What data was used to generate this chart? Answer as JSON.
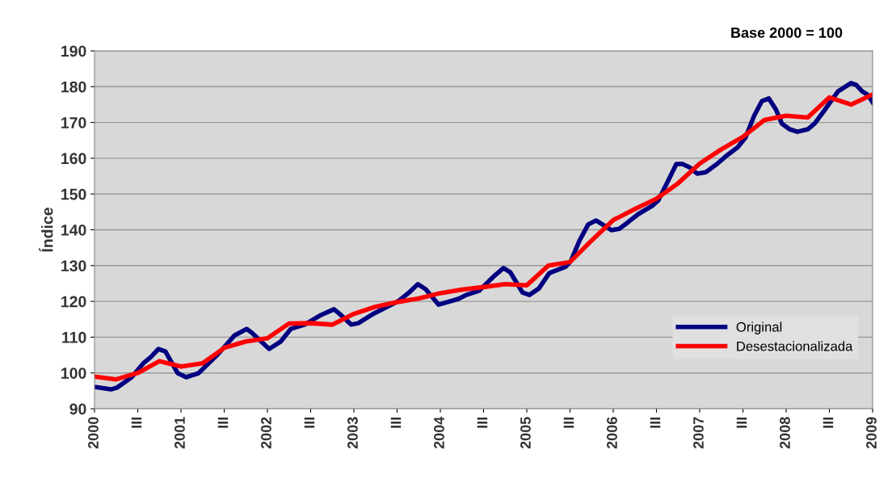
{
  "chart_data": {
    "type": "line",
    "ylabel": "Índice",
    "annotations": [
      "Base 2000 = 100"
    ],
    "xlim": [
      2000,
      2009
    ],
    "ylim": [
      90,
      190
    ],
    "yticks": [
      90,
      100,
      110,
      120,
      130,
      140,
      150,
      160,
      170,
      180,
      190
    ],
    "xticks": [
      2000,
      {
        "value": 2000.5,
        "label": "III"
      },
      2001,
      {
        "value": 2001.5,
        "label": "III"
      },
      2002,
      {
        "value": 2002.5,
        "label": "III"
      },
      2003,
      {
        "value": 2003.5,
        "label": "III"
      },
      2004,
      {
        "value": 2004.5,
        "label": "III"
      },
      2005,
      {
        "value": 2005.5,
        "label": "III"
      },
      2006,
      {
        "value": 2006.5,
        "label": "III"
      },
      2007,
      {
        "value": 2007.5,
        "label": "III"
      },
      2008,
      {
        "value": 2008.5,
        "label": "III"
      },
      2009
    ],
    "grid": "y",
    "legend": "bottom right",
    "marker": "none",
    "line_style": "solid",
    "series": [
      {
        "name": "Original",
        "color": "#000080",
        "x": [
          2000.0,
          2000.19,
          2000.26,
          2000.43,
          2000.56,
          2000.65,
          2000.74,
          2000.82,
          2000.96,
          2001.06,
          2001.2,
          2001.27,
          2001.43,
          2001.62,
          2001.76,
          2001.82,
          2002.02,
          2002.15,
          2002.27,
          2002.43,
          2002.62,
          2002.77,
          2002.83,
          2002.97,
          2003.05,
          2003.23,
          2003.51,
          2003.64,
          2003.74,
          2003.83,
          2003.98,
          2004.21,
          2004.3,
          2004.45,
          2004.61,
          2004.73,
          2004.81,
          2004.95,
          2005.03,
          2005.14,
          2005.26,
          2005.45,
          2005.51,
          2005.61,
          2005.71,
          2005.8,
          2005.98,
          2006.07,
          2006.17,
          2006.29,
          2006.45,
          2006.52,
          2006.62,
          2006.73,
          2006.8,
          2006.88,
          2006.97,
          2007.07,
          2007.2,
          2007.32,
          2007.44,
          2007.53,
          2007.63,
          2007.72,
          2007.8,
          2007.88,
          2007.95,
          2008.04,
          2008.13,
          2008.25,
          2008.33,
          2008.44,
          2008.6,
          2008.75,
          2008.81,
          2008.88,
          2008.95,
          2009.0
        ],
        "values": [
          96.1,
          95.4,
          95.9,
          98.8,
          102.6,
          104.4,
          106.7,
          106,
          100,
          98.8,
          99.9,
          101.5,
          105.3,
          110.5,
          112.3,
          111.2,
          106.7,
          108.7,
          112.3,
          113.5,
          116.2,
          117.8,
          116.6,
          113.5,
          113.9,
          116.6,
          120,
          122.5,
          124.8,
          123.4,
          119.1,
          120.7,
          121.8,
          123,
          126.8,
          129.3,
          128.1,
          122.5,
          121.8,
          123.6,
          127.9,
          129.7,
          131.3,
          137,
          141.5,
          142.6,
          139.9,
          140.3,
          142.1,
          144.4,
          146.7,
          148.2,
          153,
          158.4,
          158.4,
          157.5,
          155.7,
          156.1,
          158.4,
          160.9,
          163.1,
          165.8,
          171.9,
          176,
          176.7,
          173.7,
          169.7,
          168.1,
          167.4,
          168.1,
          169.7,
          173.3,
          178.7,
          181,
          180.5,
          178.7,
          177.6,
          175.6
        ]
      },
      {
        "name": "Desestacionalizada",
        "color": "#ff0000",
        "x": [
          2000.0,
          2000.25,
          2000.5,
          2000.75,
          2001.0,
          2001.25,
          2001.5,
          2001.75,
          2002.0,
          2002.25,
          2002.5,
          2002.75,
          2003.0,
          2003.25,
          2003.5,
          2003.75,
          2004.0,
          2004.25,
          2004.5,
          2004.75,
          2005.0,
          2005.25,
          2005.5,
          2005.75,
          2006.0,
          2006.25,
          2006.5,
          2006.75,
          2007.0,
          2007.25,
          2007.5,
          2007.75,
          2008.0,
          2008.25,
          2008.5,
          2008.75,
          2009.0
        ],
        "values": [
          99,
          98.2,
          100,
          103.3,
          101.8,
          102.7,
          107,
          108.8,
          109.7,
          113.8,
          113.9,
          113.5,
          116.5,
          118.5,
          119.8,
          120.8,
          122.3,
          123.3,
          124,
          124.8,
          124.5,
          130,
          131,
          137,
          142.7,
          145.8,
          148.7,
          153,
          158.5,
          162.5,
          166,
          170.7,
          171.9,
          171.4,
          177,
          175,
          177.8
        ]
      }
    ]
  }
}
